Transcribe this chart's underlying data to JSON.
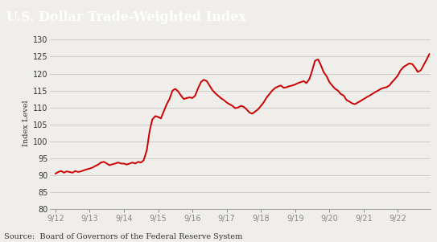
{
  "title": "U.S. Dollar Trade-Weighted Index",
  "ylabel": "Index Level",
  "source": "Source:  Board of Governors of the Federal Reserve System",
  "title_bg_color": "#555555",
  "title_text_color": "#ffffff",
  "line_color": "#cc0000",
  "plot_bg_color": "#f0eeea",
  "fig_bg_color": "#e8e6e1",
  "grid_color": "#cccccc",
  "ylim": [
    80,
    131
  ],
  "yticks": [
    80,
    85,
    90,
    95,
    100,
    105,
    110,
    115,
    120,
    125,
    130
  ],
  "xtick_labels": [
    "9/12",
    "9/13",
    "9/14",
    "9/15",
    "9/16",
    "9/17",
    "9/18",
    "9/19",
    "9/20",
    "9/21",
    "9/22"
  ]
}
